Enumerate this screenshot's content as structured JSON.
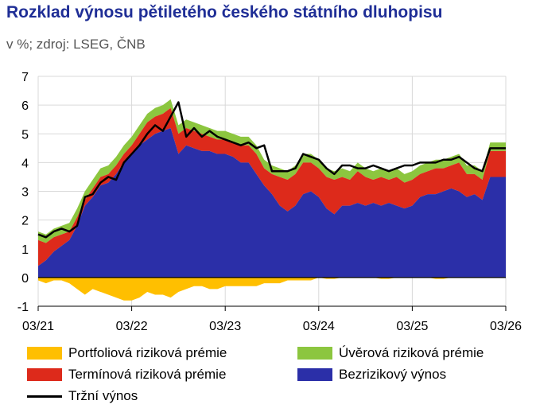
{
  "title": "Rozklad výnosu pětiletého českého státního dluhopisu",
  "subtitle": "v %; zdroj: LSEG, ČNB",
  "colors": {
    "portfolio": "#ffbf00",
    "credit": "#8cc63f",
    "term": "#dd2a1b",
    "riskfree": "#2b2fa8",
    "market": "#000000",
    "grid": "#d9d9d9"
  },
  "legend": [
    {
      "key": "portfolio",
      "label": "Portfoliová riziková prémie"
    },
    {
      "key": "credit",
      "label": "Úvěrová riziková prémie"
    },
    {
      "key": "term",
      "label": "Termínová riziková prémie"
    },
    {
      "key": "riskfree",
      "label": "Bezrizikový výnos"
    },
    {
      "key": "market",
      "label": "Tržní výnos"
    }
  ],
  "chart_data": {
    "type": "area",
    "ylim": [
      -1,
      7
    ],
    "yticks": [
      -1,
      0,
      1,
      2,
      3,
      4,
      5,
      6,
      7
    ],
    "xlim": [
      0,
      60
    ],
    "xticks": [
      {
        "x": 0,
        "label": "03/21"
      },
      {
        "x": 12,
        "label": "03/22"
      },
      {
        "x": 24,
        "label": "03/23"
      },
      {
        "x": 36,
        "label": "03/24"
      },
      {
        "x": 48,
        "label": "03/25"
      },
      {
        "x": 60,
        "label": "03/26"
      }
    ],
    "x": [
      0,
      1,
      2,
      3,
      4,
      5,
      6,
      7,
      8,
      9,
      10,
      11,
      12,
      13,
      14,
      15,
      16,
      17,
      18,
      19,
      20,
      21,
      22,
      23,
      24,
      25,
      26,
      27,
      28,
      29,
      30,
      31,
      32,
      33,
      34,
      35,
      36,
      37,
      38,
      39,
      40,
      41,
      42,
      43,
      44,
      45,
      46,
      47,
      48,
      49,
      50,
      51,
      52,
      53,
      54,
      55,
      56,
      57,
      58,
      59,
      60
    ],
    "series": [
      {
        "key": "riskfree",
        "name": "Bezrizikový výnos",
        "values": [
          0.4,
          0.6,
          0.9,
          1.1,
          1.3,
          1.8,
          2.5,
          2.8,
          3.2,
          3.3,
          3.6,
          4.0,
          4.3,
          4.6,
          4.8,
          5.0,
          5.1,
          5.2,
          4.3,
          4.6,
          4.5,
          4.4,
          4.4,
          4.3,
          4.3,
          4.2,
          4.0,
          4.0,
          3.6,
          3.2,
          2.9,
          2.5,
          2.3,
          2.5,
          2.9,
          3.0,
          2.8,
          2.4,
          2.2,
          2.5,
          2.5,
          2.6,
          2.5,
          2.6,
          2.5,
          2.6,
          2.5,
          2.4,
          2.5,
          2.8,
          2.9,
          2.9,
          3.0,
          3.1,
          3.0,
          2.8,
          2.9,
          2.7,
          3.5,
          3.5,
          3.5
        ]
      },
      {
        "key": "term",
        "name": "Termínová riziková prémie",
        "values": [
          0.9,
          0.6,
          0.5,
          0.4,
          0.3,
          0.3,
          0.2,
          0.3,
          0.3,
          0.3,
          0.3,
          0.3,
          0.3,
          0.4,
          0.6,
          0.6,
          0.6,
          0.7,
          0.7,
          0.6,
          0.6,
          0.6,
          0.5,
          0.5,
          0.5,
          0.5,
          0.6,
          0.6,
          0.7,
          0.6,
          0.7,
          1.0,
          1.1,
          1.1,
          1.1,
          1.0,
          1.0,
          1.1,
          1.2,
          1.0,
          0.9,
          1.1,
          1.0,
          0.8,
          1.0,
          0.8,
          1.0,
          0.9,
          0.9,
          0.8,
          0.8,
          0.9,
          0.8,
          0.8,
          1.0,
          0.8,
          0.7,
          0.7,
          0.9,
          0.9,
          0.9
        ]
      },
      {
        "key": "credit",
        "name": "Úvěrová riziková prémie",
        "values": [
          0.3,
          0.3,
          0.3,
          0.3,
          0.3,
          0.3,
          0.3,
          0.3,
          0.3,
          0.3,
          0.3,
          0.3,
          0.3,
          0.3,
          0.3,
          0.3,
          0.3,
          0.3,
          0.3,
          0.3,
          0.3,
          0.3,
          0.3,
          0.3,
          0.3,
          0.3,
          0.3,
          0.3,
          0.3,
          0.3,
          0.3,
          0.3,
          0.3,
          0.3,
          0.3,
          0.3,
          0.3,
          0.3,
          0.3,
          0.3,
          0.3,
          0.3,
          0.3,
          0.3,
          0.3,
          0.3,
          0.3,
          0.3,
          0.3,
          0.3,
          0.3,
          0.3,
          0.3,
          0.3,
          0.3,
          0.3,
          0.3,
          0.3,
          0.3,
          0.3,
          0.3
        ]
      },
      {
        "key": "portfolio",
        "name": "Portfoliová riziková prémie",
        "values": [
          -0.1,
          -0.2,
          -0.1,
          -0.1,
          -0.2,
          -0.4,
          -0.6,
          -0.4,
          -0.5,
          -0.6,
          -0.7,
          -0.8,
          -0.8,
          -0.7,
          -0.5,
          -0.6,
          -0.6,
          -0.7,
          -0.5,
          -0.4,
          -0.3,
          -0.3,
          -0.4,
          -0.4,
          -0.3,
          -0.3,
          -0.3,
          -0.3,
          -0.3,
          -0.2,
          -0.2,
          -0.2,
          -0.1,
          -0.1,
          -0.1,
          -0.1,
          0.0,
          -0.05,
          -0.05,
          0.0,
          0.0,
          0.0,
          0.0,
          0.0,
          -0.05,
          -0.05,
          0.0,
          0.0,
          0.0,
          0.0,
          0.0,
          -0.05,
          -0.05,
          0.0,
          0.0,
          0.0,
          0.0,
          0.0,
          0.0,
          0.0,
          0.0
        ]
      },
      {
        "key": "market",
        "name": "Tržní výnos",
        "values": [
          1.5,
          1.4,
          1.6,
          1.7,
          1.6,
          1.8,
          2.8,
          2.9,
          3.3,
          3.5,
          3.4,
          4.0,
          4.3,
          4.6,
          5.0,
          5.3,
          5.1,
          5.6,
          6.1,
          4.9,
          5.2,
          4.9,
          5.1,
          4.9,
          4.8,
          4.7,
          4.6,
          4.7,
          4.5,
          4.6,
          3.7,
          3.7,
          3.7,
          3.8,
          4.3,
          4.2,
          4.1,
          3.8,
          3.6,
          3.9,
          3.9,
          3.8,
          3.8,
          3.9,
          3.8,
          3.7,
          3.8,
          3.9,
          3.9,
          4.0,
          4.0,
          4.0,
          4.1,
          4.1,
          4.2,
          4.0,
          3.8,
          3.7,
          4.5,
          4.5,
          4.5
        ]
      }
    ]
  }
}
